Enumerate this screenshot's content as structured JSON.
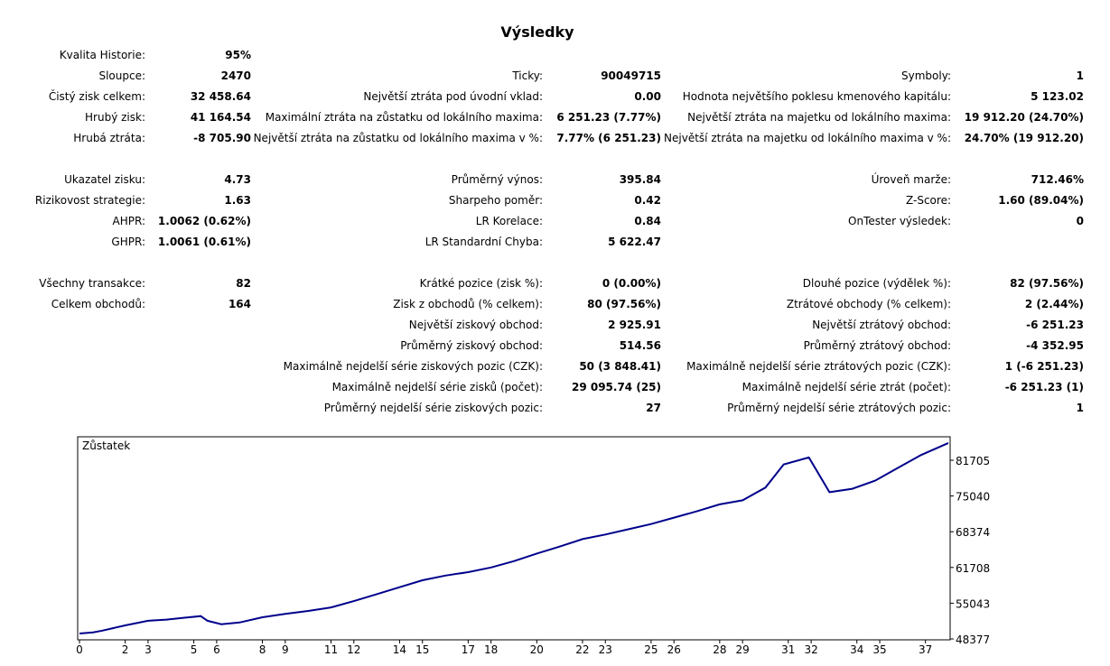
{
  "title": "Výsledky",
  "rows": [
    {
      "c1": {
        "label": "Kvalita Historie:",
        "value": "95%"
      }
    },
    {
      "c1": {
        "label": "Sloupce:",
        "value": "2470"
      },
      "c2": {
        "label": "Ticky:",
        "value": "90049715"
      },
      "c3": {
        "label": "Symboly:",
        "value": "1"
      }
    },
    {
      "c1": {
        "label": "Čistý zisk celkem:",
        "value": "32 458.64"
      },
      "c2": {
        "label": "Největší ztráta pod úvodní vklad:",
        "value": "0.00"
      },
      "c3": {
        "label": "Hodnota největšího poklesu kmenového kapitálu:",
        "value": "5 123.02"
      }
    },
    {
      "c1": {
        "label": "Hrubý zisk:",
        "value": "41 164.54"
      },
      "c2": {
        "label": "Maximální ztráta na zůstatku od lokálního maxima:",
        "value": "6 251.23 (7.77%)"
      },
      "c3": {
        "label": "Největší ztráta na majetku od lokálního maxima:",
        "value": "19 912.20 (24.70%)"
      }
    },
    {
      "c1": {
        "label": "Hrubá ztráta:",
        "value": "-8 705.90"
      },
      "c2": {
        "label": "Největší ztráta na zůstatku od lokálního maxima v %:",
        "value": "7.77% (6 251.23)"
      },
      "c3": {
        "label": "Největší ztráta na majetku od lokálního maxima v %:",
        "value": "24.70% (19 912.20)"
      }
    },
    {},
    {
      "c1": {
        "label": "Ukazatel zisku:",
        "value": "4.73"
      },
      "c2": {
        "label": "Průměrný výnos:",
        "value": "395.84"
      },
      "c3": {
        "label": "Úroveň marže:",
        "value": "712.46%"
      }
    },
    {
      "c1": {
        "label": "Rizikovost strategie:",
        "value": "1.63"
      },
      "c2": {
        "label": "Sharpeho poměr:",
        "value": "0.42"
      },
      "c3": {
        "label": "Z-Score:",
        "value": "1.60 (89.04%)"
      }
    },
    {
      "c1": {
        "label": "AHPR:",
        "value": "1.0062 (0.62%)"
      },
      "c2": {
        "label": "LR Korelace:",
        "value": "0.84"
      },
      "c3": {
        "label": "OnTester výsledek:",
        "value": "0"
      }
    },
    {
      "c1": {
        "label": "GHPR:",
        "value": "1.0061 (0.61%)"
      },
      "c2": {
        "label": "LR Standardní Chyba:",
        "value": "5 622.47"
      }
    },
    {},
    {
      "c1": {
        "label": "Všechny transakce:",
        "value": "82"
      },
      "c2": {
        "label": "Krátké pozice (zisk %):",
        "value": "0 (0.00%)"
      },
      "c3": {
        "label": "Dlouhé pozice (výdělek %):",
        "value": "82 (97.56%)"
      }
    },
    {
      "c1": {
        "label": "Celkem obchodů:",
        "value": "164"
      },
      "c2": {
        "label": "Zisk z obchodů (% celkem):",
        "value": "80 (97.56%)"
      },
      "c3": {
        "label": "Ztrátové obchody (% celkem):",
        "value": "2 (2.44%)"
      }
    },
    {
      "c2": {
        "label": "Největší ziskový obchod:",
        "value": "2 925.91"
      },
      "c3": {
        "label": "Největší ztrátový obchod:",
        "value": "-6 251.23"
      }
    },
    {
      "c2": {
        "label": "Průměrný ziskový obchod:",
        "value": "514.56"
      },
      "c3": {
        "label": "Průměrný ztrátový obchod:",
        "value": "-4 352.95"
      }
    },
    {
      "c2": {
        "label": "Maximálně nejdelší série ziskových pozic (CZK):",
        "value": "50 (3 848.41)"
      },
      "c3": {
        "label": "Maximálně nejdelší série ztrátových pozic (CZK):",
        "value": "1 (-6 251.23)"
      }
    },
    {
      "c2": {
        "label": "Maximálně nejdelší série zisků (počet):",
        "value": "29 095.74 (25)"
      },
      "c3": {
        "label": "Maximálně nejdelší série ztrát (počet):",
        "value": "-6 251.23 (1)"
      }
    },
    {
      "c2": {
        "label": "Průměrný nejdelší série ziskových pozic:",
        "value": "27"
      },
      "c3": {
        "label": "Průměrný nejdelší série ztrátových pozic:",
        "value": "1"
      }
    }
  ],
  "chart_data": {
    "type": "line",
    "title": "Zůstatek",
    "line_color": "#00008b",
    "x_ticks": [
      "0",
      "2",
      "3",
      "5",
      "6",
      "8",
      "9",
      "11",
      "12",
      "14",
      "15",
      "17",
      "18",
      "20",
      "22",
      "23",
      "25",
      "26",
      "28",
      "29",
      "31",
      "32",
      "34",
      "35",
      "37"
    ],
    "y_ticks": [
      "81705",
      "75040",
      "68374",
      "61708",
      "55043",
      "48377"
    ],
    "ylim": [
      48377,
      82500
    ],
    "xlim": [
      0,
      38
    ],
    "series": [
      {
        "x": [
          0,
          0.6,
          1,
          2,
          3,
          3.8,
          4.5,
          5.3,
          5.6,
          6.2,
          7,
          8,
          9,
          10,
          11,
          12,
          13,
          14,
          15,
          16,
          17,
          18,
          19,
          20,
          21,
          22,
          23,
          24,
          25,
          26,
          27,
          28,
          29,
          30,
          30.8,
          31.9,
          32.8,
          33.8,
          34.8,
          35.8,
          36.8,
          38
        ],
        "values": [
          49000,
          49200,
          49500,
          50400,
          51200,
          51400,
          51700,
          52000,
          51200,
          50600,
          50900,
          51800,
          52400,
          52900,
          53500,
          54600,
          55800,
          57000,
          58200,
          59000,
          59600,
          60400,
          61500,
          62800,
          64000,
          65300,
          66100,
          67000,
          67900,
          69000,
          70100,
          71300,
          72000,
          74200,
          78200,
          79400,
          73400,
          74000,
          75400,
          77600,
          79800,
          81900
        ]
      }
    ]
  }
}
